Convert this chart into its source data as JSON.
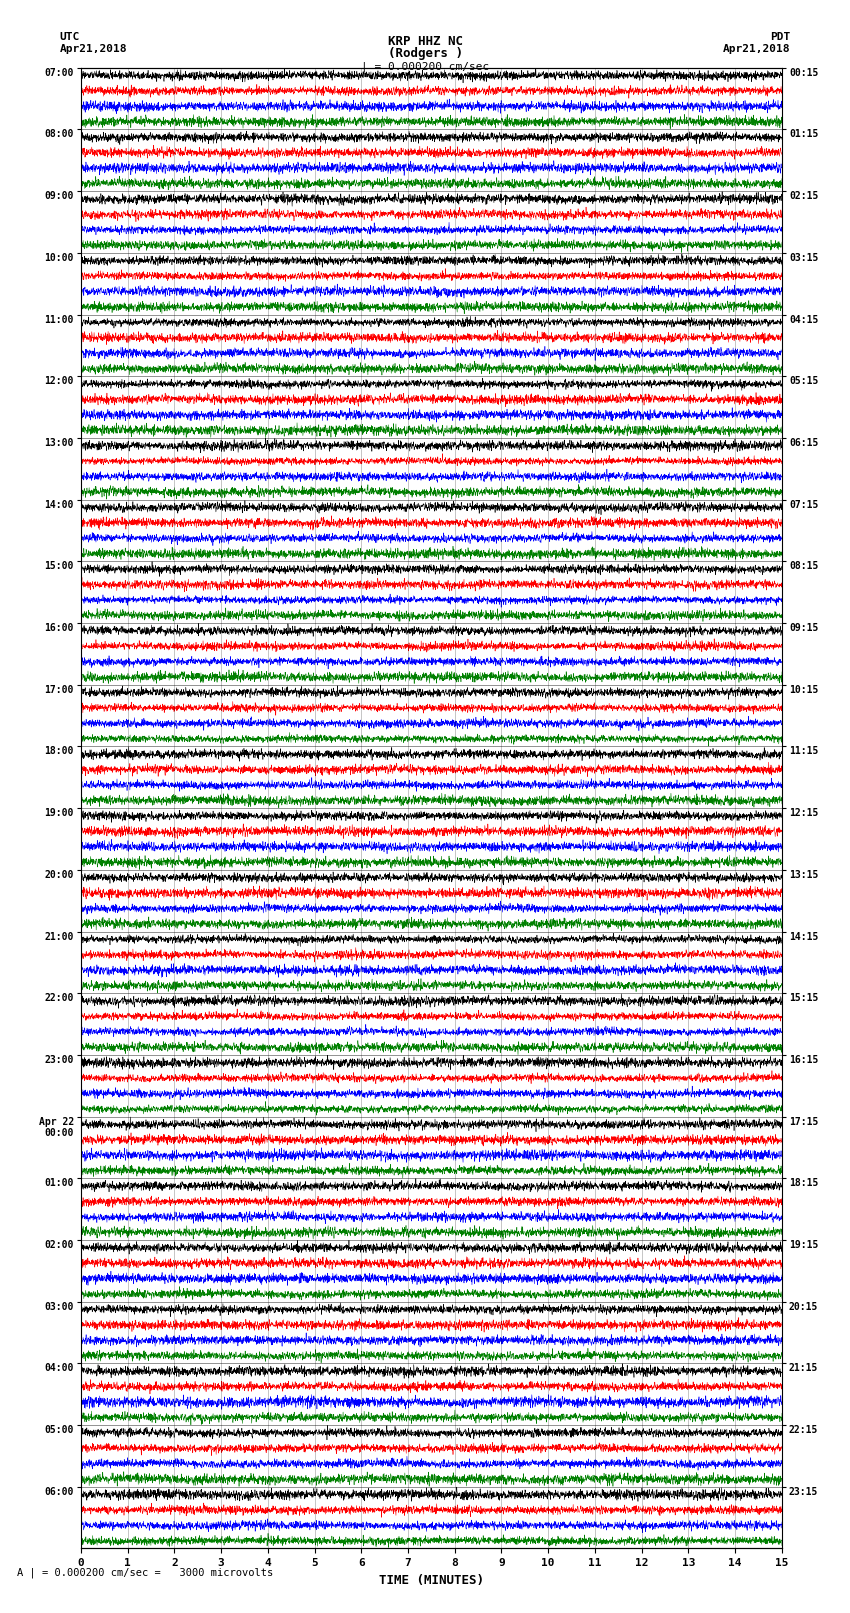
{
  "title_line1": "KRP HHZ NC",
  "title_line2": "(Rodgers )",
  "title_line3": "| = 0.000200 cm/sec",
  "left_label_top": "UTC",
  "left_label_date": "Apr21,2018",
  "right_label_top": "PDT",
  "right_label_date": "Apr21,2018",
  "xlabel": "TIME (MINUTES)",
  "bottom_note": "A | = 0.000200 cm/sec =   3000 microvolts",
  "left_times": [
    "07:00",
    "08:00",
    "09:00",
    "10:00",
    "11:00",
    "12:00",
    "13:00",
    "14:00",
    "15:00",
    "16:00",
    "17:00",
    "18:00",
    "19:00",
    "20:00",
    "21:00",
    "22:00",
    "23:00",
    "Apr 22\n00:00",
    "01:00",
    "02:00",
    "03:00",
    "04:00",
    "05:00",
    "06:00"
  ],
  "right_times": [
    "00:15",
    "01:15",
    "02:15",
    "03:15",
    "04:15",
    "05:15",
    "06:15",
    "07:15",
    "08:15",
    "09:15",
    "10:15",
    "11:15",
    "12:15",
    "13:15",
    "14:15",
    "15:15",
    "16:15",
    "17:15",
    "18:15",
    "19:15",
    "20:15",
    "21:15",
    "22:15",
    "23:15"
  ],
  "colors": [
    "black",
    "red",
    "blue",
    "green"
  ],
  "n_rows": 24,
  "traces_per_row": 4,
  "n_points": 3000,
  "amplitude": 0.48,
  "x_ticks": [
    0,
    1,
    2,
    3,
    4,
    5,
    6,
    7,
    8,
    9,
    10,
    11,
    12,
    13,
    14,
    15
  ],
  "fig_width": 8.5,
  "fig_height": 16.13,
  "bg_color": "white",
  "trace_lw": 0.4
}
